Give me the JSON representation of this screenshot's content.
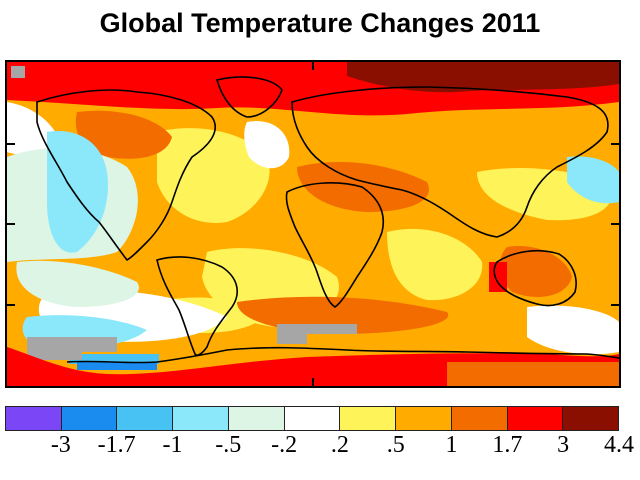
{
  "title": "Global Temperature Changes 2011",
  "legend": {
    "colors": [
      "#7b46f6",
      "#1a8cf0",
      "#48c2f2",
      "#8be8fb",
      "#dcf5e4",
      "#ffffff",
      "#fff35a",
      "#ffab00",
      "#f26c00",
      "#ff0000",
      "#8b0f00"
    ],
    "labels": [
      "-3",
      "-1.7",
      "-1",
      "-.5",
      "-.2",
      ".2",
      ".5",
      "1",
      "1.7",
      "3",
      "4.4"
    ]
  },
  "map": {
    "colors": {
      "ocean_anomaly_warm": "#ffab00",
      "strong_warm": "#ff0000",
      "extreme_warm": "#8b0f00",
      "moderate_warm": "#f26c00",
      "slight_warm": "#fff35a",
      "neutral": "#ffffff",
      "slight_cool": "#dcf5e4",
      "cool": "#8be8fb",
      "cold": "#1a8cf0",
      "missing": "#a6a6a6"
    }
  }
}
